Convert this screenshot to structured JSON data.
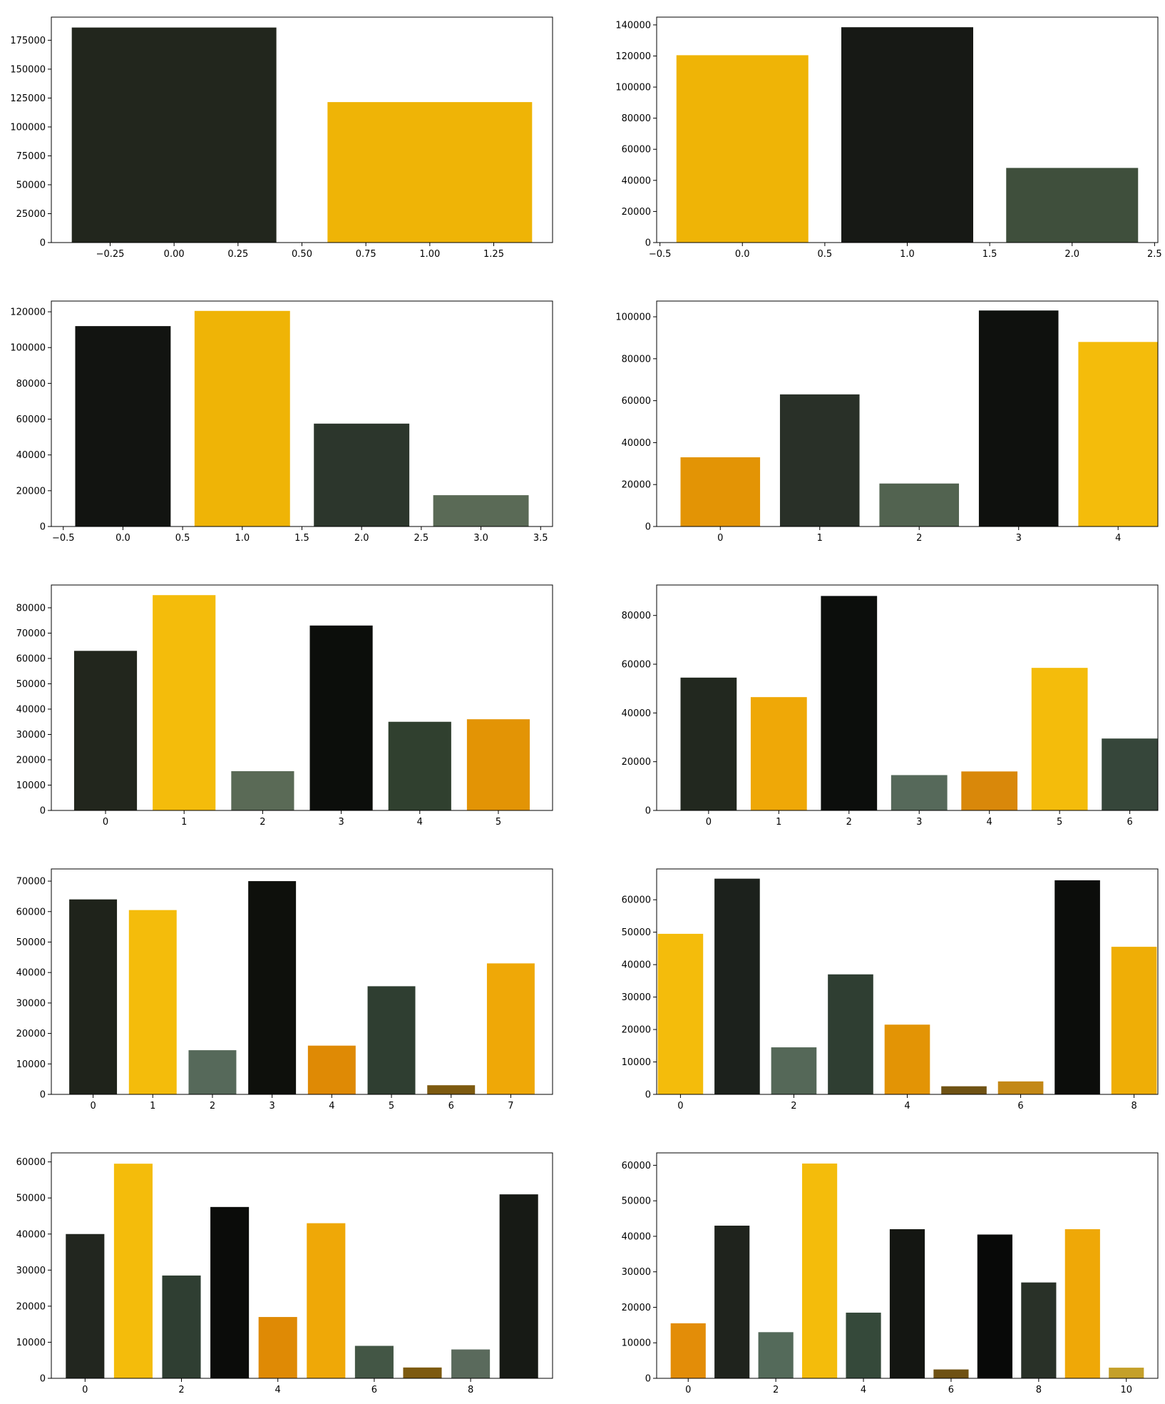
{
  "chart_data": [
    {
      "type": "bar",
      "x": [
        0,
        1
      ],
      "values": [
        186000,
        121500
      ],
      "colors": [
        "#22261d",
        "#efb406"
      ],
      "xlim": [
        -0.48,
        1.48
      ],
      "ylim": [
        0,
        195000
      ],
      "xticks": [
        -0.25,
        0.0,
        0.25,
        0.5,
        0.75,
        1.0,
        1.25
      ],
      "xtick_labels": [
        "−0.25",
        "0.00",
        "0.25",
        "0.50",
        "0.75",
        "1.00",
        "1.25"
      ],
      "yticks": [
        0,
        25000,
        50000,
        75000,
        100000,
        125000,
        150000,
        175000
      ],
      "ytick_labels": [
        "0",
        "25000",
        "50000",
        "75000",
        "100000",
        "125000",
        "150000",
        "175000"
      ]
    },
    {
      "type": "bar",
      "x": [
        0,
        1,
        2
      ],
      "values": [
        120500,
        138500,
        48000
      ],
      "colors": [
        "#efb406",
        "#171915",
        "#3f4f3c"
      ],
      "xlim": [
        -0.52,
        2.52
      ],
      "ylim": [
        0,
        145000
      ],
      "xticks": [
        -0.5,
        0.0,
        0.5,
        1.0,
        1.5,
        2.0,
        2.5
      ],
      "xtick_labels": [
        "−0.5",
        "0.0",
        "0.5",
        "1.0",
        "1.5",
        "2.0",
        "2.5"
      ],
      "yticks": [
        0,
        20000,
        40000,
        60000,
        80000,
        100000,
        120000,
        140000
      ],
      "ytick_labels": [
        "0",
        "20000",
        "40000",
        "60000",
        "80000",
        "100000",
        "120000",
        "140000"
      ]
    },
    {
      "type": "bar",
      "x": [
        0,
        1,
        2,
        3
      ],
      "values": [
        112000,
        120500,
        57500,
        17500
      ],
      "colors": [
        "#121411",
        "#efb406",
        "#2c362c",
        "#5a6a56"
      ],
      "xlim": [
        -0.6,
        3.6
      ],
      "ylim": [
        0,
        126000
      ],
      "xticks": [
        -0.5,
        0.0,
        0.5,
        1.0,
        1.5,
        2.0,
        2.5,
        3.0,
        3.5
      ],
      "xtick_labels": [
        "−0.5",
        "0.0",
        "0.5",
        "1.0",
        "1.5",
        "2.0",
        "2.5",
        "3.0",
        "3.5"
      ],
      "yticks": [
        0,
        20000,
        40000,
        60000,
        80000,
        100000,
        120000
      ],
      "ytick_labels": [
        "0",
        "20000",
        "40000",
        "60000",
        "80000",
        "100000",
        "120000"
      ]
    },
    {
      "type": "bar",
      "x": [
        0,
        1,
        2,
        3,
        4
      ],
      "values": [
        33000,
        63000,
        20500,
        103000,
        88000
      ],
      "colors": [
        "#e39405",
        "#293028",
        "#526350",
        "#0f110e",
        "#f4bc0b"
      ],
      "xlim": [
        -0.64,
        4.4
      ],
      "ylim": [
        0,
        107500
      ],
      "xticks": [
        0,
        1,
        2,
        3,
        4
      ],
      "xtick_labels": [
        "0",
        "1",
        "2",
        "3",
        "4"
      ],
      "yticks": [
        0,
        20000,
        40000,
        60000,
        80000,
        100000
      ],
      "ytick_labels": [
        "0",
        "20000",
        "40000",
        "60000",
        "80000",
        "100000"
      ]
    },
    {
      "type": "bar",
      "x": [
        0,
        1,
        2,
        3,
        4,
        5
      ],
      "values": [
        63000,
        85000,
        15500,
        73000,
        35000,
        36000
      ],
      "colors": [
        "#22261d",
        "#f4bc0b",
        "#5a6a56",
        "#0c0e0b",
        "#30402f",
        "#e39405"
      ],
      "xlim": [
        -0.69,
        5.69
      ],
      "ylim": [
        0,
        89000
      ],
      "xticks": [
        0,
        1,
        2,
        3,
        4,
        5
      ],
      "xtick_labels": [
        "0",
        "1",
        "2",
        "3",
        "4",
        "5"
      ],
      "yticks": [
        0,
        10000,
        20000,
        30000,
        40000,
        50000,
        60000,
        70000,
        80000
      ],
      "ytick_labels": [
        "0",
        "10000",
        "20000",
        "30000",
        "40000",
        "50000",
        "60000",
        "70000",
        "80000"
      ]
    },
    {
      "type": "bar",
      "x": [
        0,
        1,
        2,
        3,
        4,
        5,
        6
      ],
      "values": [
        54500,
        46500,
        88000,
        14500,
        16000,
        58500,
        29500
      ],
      "colors": [
        "#22281f",
        "#efa807",
        "#0c0e0c",
        "#56695a",
        "#d9880a",
        "#f4bc0b",
        "#36463a"
      ],
      "xlim": [
        -0.74,
        6.4
      ],
      "ylim": [
        0,
        92500
      ],
      "xticks": [
        0,
        1,
        2,
        3,
        4,
        5,
        6
      ],
      "xtick_labels": [
        "0",
        "1",
        "2",
        "3",
        "4",
        "5",
        "6"
      ],
      "yticks": [
        0,
        20000,
        40000,
        60000,
        80000
      ],
      "ytick_labels": [
        "0",
        "20000",
        "40000",
        "60000",
        "80000"
      ]
    },
    {
      "type": "bar",
      "x": [
        0,
        1,
        2,
        3,
        4,
        5,
        6,
        7
      ],
      "values": [
        64000,
        60500,
        14500,
        70000,
        16000,
        35500,
        3000,
        43000
      ],
      "colors": [
        "#1f231b",
        "#f4bc0b",
        "#56695a",
        "#0e100c",
        "#df8a05",
        "#2f3e31",
        "#7d5a10",
        "#efa807"
      ],
      "xlim": [
        -0.7,
        7.7
      ],
      "ylim": [
        0,
        74000
      ],
      "xticks": [
        0,
        1,
        2,
        3,
        4,
        5,
        6,
        7
      ],
      "xtick_labels": [
        "0",
        "1",
        "2",
        "3",
        "4",
        "5",
        "6",
        "7"
      ],
      "yticks": [
        0,
        10000,
        20000,
        30000,
        40000,
        50000,
        60000,
        70000
      ],
      "ytick_labels": [
        "0",
        "10000",
        "20000",
        "30000",
        "40000",
        "50000",
        "60000",
        "70000"
      ]
    },
    {
      "type": "bar",
      "x": [
        0,
        1,
        2,
        3,
        4,
        5,
        6,
        7,
        8
      ],
      "values": [
        49500,
        66500,
        14500,
        37000,
        21500,
        2500,
        4000,
        66000,
        45500
      ],
      "colors": [
        "#f4bc0b",
        "#1c211c",
        "#556858",
        "#2f3e32",
        "#e39405",
        "#6f5214",
        "#c38816",
        "#0c0d0b",
        "#efae06"
      ],
      "xlim": [
        -0.42,
        8.42
      ],
      "ylim": [
        0,
        69500
      ],
      "xticks": [
        0,
        2,
        4,
        6,
        8
      ],
      "xtick_labels": [
        "0",
        "2",
        "4",
        "6",
        "8"
      ],
      "yticks": [
        0,
        10000,
        20000,
        30000,
        40000,
        50000,
        60000
      ],
      "ytick_labels": [
        "0",
        "10000",
        "20000",
        "30000",
        "40000",
        "50000",
        "60000"
      ]
    },
    {
      "type": "bar",
      "x": [
        0,
        1,
        2,
        3,
        4,
        5,
        6,
        7,
        8,
        9
      ],
      "values": [
        40000,
        59500,
        28500,
        47500,
        17000,
        43000,
        9000,
        3000,
        8000,
        51000
      ],
      "colors": [
        "#22261f",
        "#f4bc0b",
        "#2f3e32",
        "#0b0c0a",
        "#df8a05",
        "#efa807",
        "#435645",
        "#7d5a10",
        "#5a6a5c",
        "#171a15"
      ],
      "xlim": [
        -0.7,
        9.7
      ],
      "ylim": [
        0,
        62500
      ],
      "xticks": [
        0,
        2,
        4,
        6,
        8
      ],
      "xtick_labels": [
        "0",
        "2",
        "4",
        "6",
        "8"
      ],
      "yticks": [
        0,
        10000,
        20000,
        30000,
        40000,
        50000,
        60000
      ],
      "ytick_labels": [
        "0",
        "10000",
        "20000",
        "30000",
        "40000",
        "50000",
        "60000"
      ]
    },
    {
      "type": "bar",
      "x": [
        0,
        1,
        2,
        3,
        4,
        5,
        6,
        7,
        8,
        9,
        10
      ],
      "values": [
        15500,
        43000,
        13000,
        60500,
        18500,
        42000,
        2500,
        40500,
        27000,
        42000,
        3000
      ],
      "colors": [
        "#e38d08",
        "#1f231d",
        "#546a5a",
        "#f4bc0b",
        "#35493a",
        "#141612",
        "#6f5214",
        "#080908",
        "#293128",
        "#efa807",
        "#c4a02a"
      ],
      "xlim": [
        -0.72,
        10.72
      ],
      "ylim": [
        0,
        63500
      ],
      "xticks": [
        0,
        2,
        4,
        6,
        8,
        10
      ],
      "xtick_labels": [
        "0",
        "2",
        "4",
        "6",
        "8",
        "10"
      ],
      "yticks": [
        0,
        10000,
        20000,
        30000,
        40000,
        50000,
        60000
      ],
      "ytick_labels": [
        "0",
        "10000",
        "20000",
        "30000",
        "40000",
        "50000",
        "60000"
      ]
    }
  ]
}
